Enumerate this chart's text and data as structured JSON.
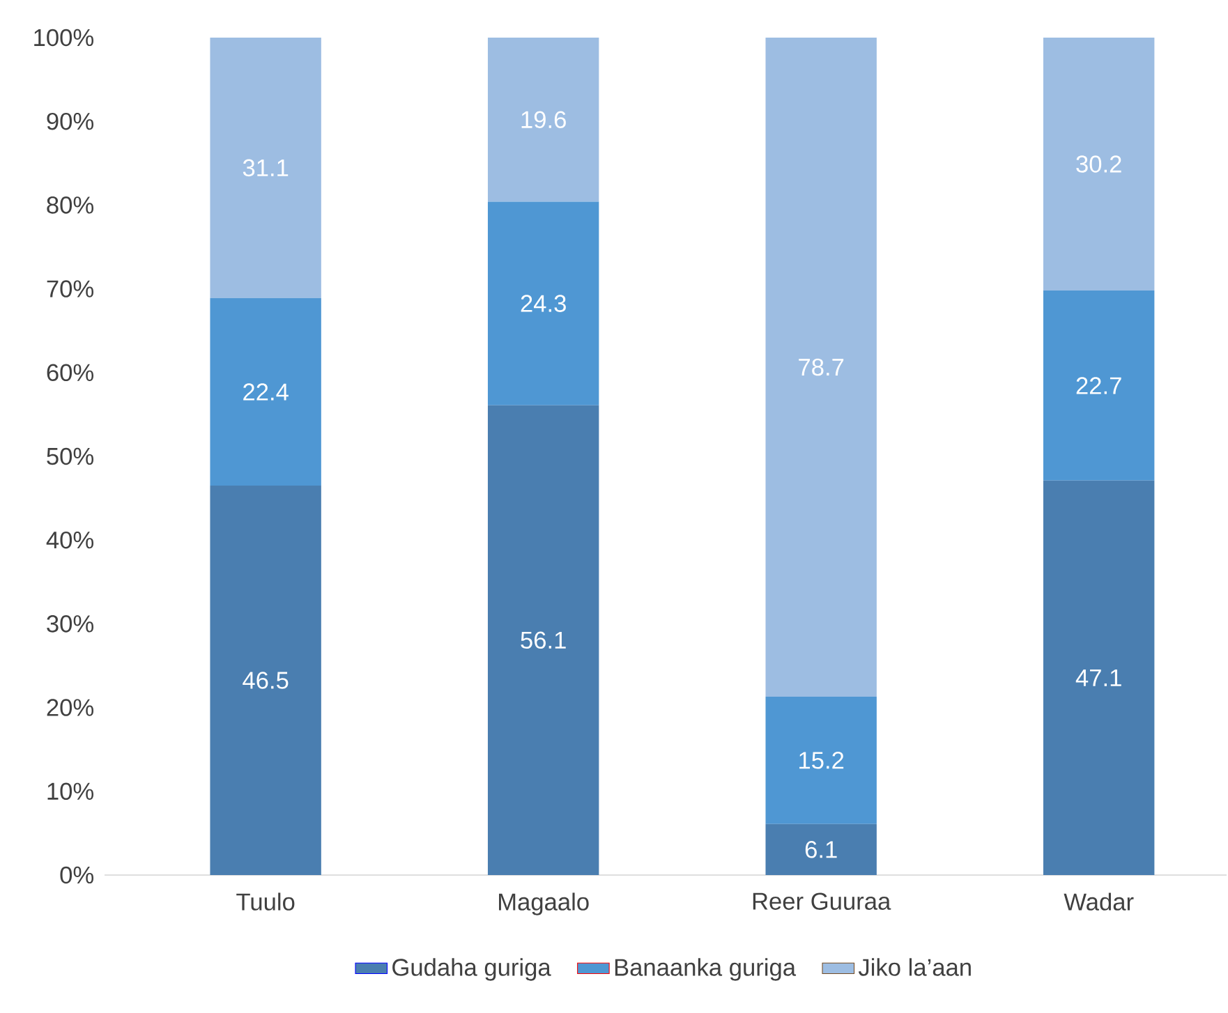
{
  "chart_data": {
    "type": "bar",
    "stacked": true,
    "categories": [
      "Tuulo",
      "Magaalo",
      "Reer Guuraa",
      "Wadar"
    ],
    "series": [
      {
        "name": "Gudaha guriga",
        "color": "#4a7eb0",
        "values": [
          46.5,
          56.1,
          6.1,
          47.1
        ]
      },
      {
        "name": "Banaanka guriga",
        "color": "#4f97d3",
        "values": [
          22.4,
          24.3,
          15.2,
          22.7
        ]
      },
      {
        "name": "Jiko la’aan",
        "color": "#9dbde2",
        "values": [
          31.1,
          19.6,
          78.7,
          30.2
        ]
      }
    ],
    "ylim": [
      0,
      100
    ],
    "yticks": [
      {
        "value": 0,
        "label": "0%"
      },
      {
        "value": 10,
        "label": "10%"
      },
      {
        "value": 20,
        "label": "20%"
      },
      {
        "value": 30,
        "label": "30%"
      },
      {
        "value": 40,
        "label": "40%"
      },
      {
        "value": 50,
        "label": "50%"
      },
      {
        "value": 60,
        "label": "60%"
      },
      {
        "value": 70,
        "label": "70%"
      },
      {
        "value": 80,
        "label": "80%"
      },
      {
        "value": 90,
        "label": "90%"
      },
      {
        "value": 100,
        "label": "100%"
      }
    ],
    "data_labels": true,
    "legend": "bottom",
    "grid": false
  }
}
